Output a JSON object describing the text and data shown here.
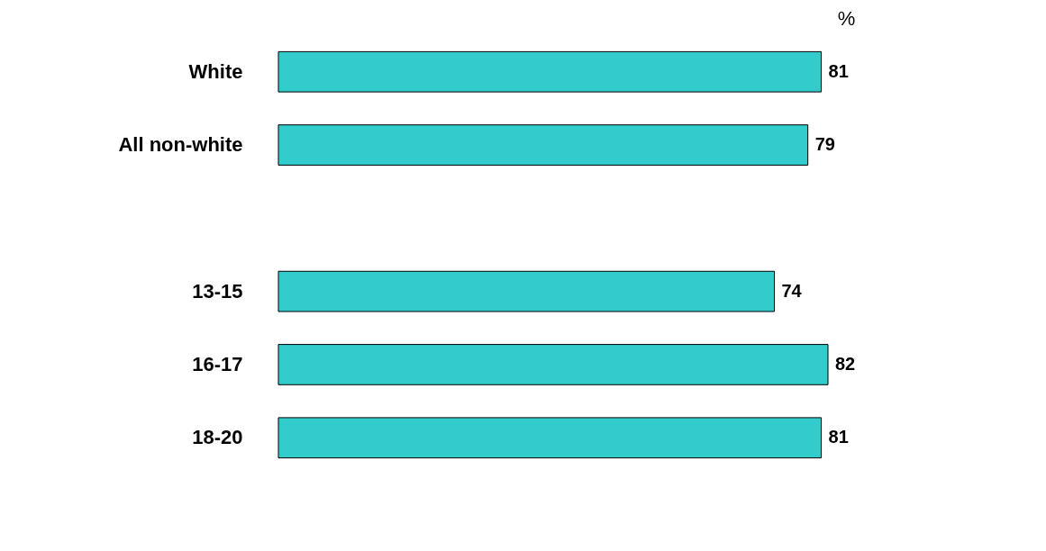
{
  "chart_data": {
    "type": "bar",
    "orientation": "horizontal",
    "xlabel": "%",
    "categories": [
      "White",
      "All non-white",
      null,
      "13-15",
      "16-17",
      "18-20"
    ],
    "values": [
      81,
      79,
      null,
      74,
      82,
      81
    ],
    "color": "#33cccc",
    "data_labels": true,
    "grid": false,
    "tick_labels": "y"
  }
}
